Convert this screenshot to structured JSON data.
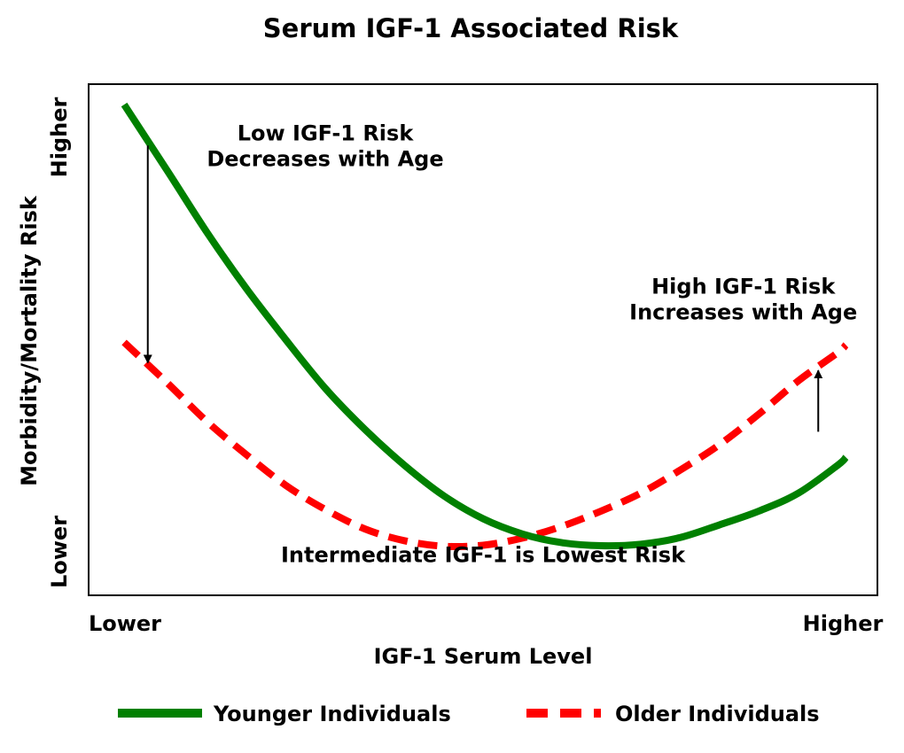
{
  "chart_data": {
    "type": "line",
    "title": "Serum IGF-1 Associated Risk",
    "xlabel": "IGF-1 Serum Level",
    "ylabel": "Morbidity/Mortality Risk",
    "x_tick_labels": [
      "Lower",
      "Higher"
    ],
    "y_tick_labels": [
      "Lower",
      "Higher"
    ],
    "xlim": [
      0,
      1
    ],
    "ylim": [
      0,
      1
    ],
    "grid": false,
    "legend_position": "bottom",
    "series": [
      {
        "name": "Younger Individuals",
        "color": "#008000",
        "style": "solid",
        "x": [
          0.045,
          0.1,
          0.15,
          0.2,
          0.25,
          0.3,
          0.35,
          0.4,
          0.45,
          0.5,
          0.55,
          0.6,
          0.65,
          0.7,
          0.75,
          0.8,
          0.85,
          0.9,
          0.95,
          0.96
        ],
        "y": [
          0.96,
          0.83,
          0.71,
          0.6,
          0.5,
          0.405,
          0.325,
          0.255,
          0.195,
          0.15,
          0.12,
          0.103,
          0.097,
          0.1,
          0.113,
          0.138,
          0.165,
          0.2,
          0.255,
          0.27
        ]
      },
      {
        "name": "Older Individuals",
        "color": "#ff0000",
        "style": "dashed",
        "x": [
          0.045,
          0.1,
          0.15,
          0.2,
          0.25,
          0.3,
          0.35,
          0.4,
          0.45,
          0.5,
          0.55,
          0.6,
          0.65,
          0.7,
          0.75,
          0.8,
          0.85,
          0.9,
          0.95,
          0.96
        ],
        "y": [
          0.495,
          0.415,
          0.34,
          0.275,
          0.215,
          0.168,
          0.13,
          0.107,
          0.096,
          0.098,
          0.112,
          0.135,
          0.165,
          0.2,
          0.245,
          0.295,
          0.355,
          0.42,
          0.475,
          0.49
        ]
      }
    ],
    "annotations": [
      {
        "text": "Low IGF-1 Risk",
        "x": 0.3,
        "y": 0.89
      },
      {
        "text": "Decreases with Age",
        "x": 0.3,
        "y": 0.84
      },
      {
        "text": "High IGF-1 Risk",
        "x": 0.83,
        "y": 0.59
      },
      {
        "text": "Increases with Age",
        "x": 0.83,
        "y": 0.54
      },
      {
        "text": "Intermediate IGF-1 is Lowest Risk",
        "x": 0.5,
        "y": 0.065
      }
    ],
    "arrows": [
      {
        "x": 0.075,
        "y_from": 0.88,
        "y_to": 0.455
      },
      {
        "x": 0.925,
        "y_from": 0.32,
        "y_to": 0.44
      }
    ]
  }
}
